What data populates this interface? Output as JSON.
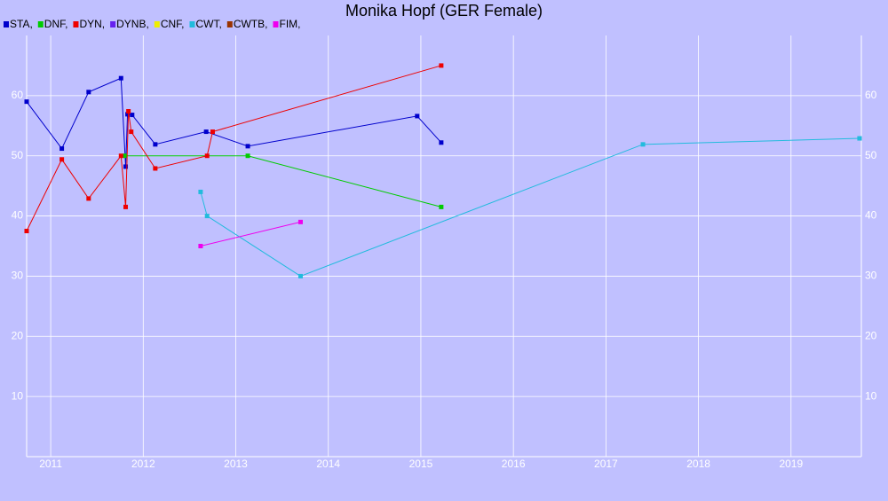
{
  "chart_data": {
    "type": "line",
    "title": "Monika Hopf (GER Female)",
    "series": [
      {
        "name": "STA,",
        "color": "#0000cc",
        "x": [
          2010.74,
          2011.12,
          2011.41,
          2011.76,
          2011.81,
          2011.83,
          2011.88,
          2012.13,
          2012.68,
          2013.13,
          2014.96,
          2015.22
        ],
        "values": [
          59,
          51.2,
          60.6,
          62.9,
          48.2,
          56.9,
          56.8,
          51.9,
          54,
          51.6,
          56.6,
          52.2
        ]
      },
      {
        "name": "DNF,",
        "color": "#00cc00",
        "x": [
          2011.8,
          2013.13,
          2015.22
        ],
        "values": [
          50,
          50,
          41.5
        ]
      },
      {
        "name": "DYN,",
        "color": "#ee0000",
        "x": [
          2010.74,
          2011.12,
          2011.41,
          2011.76,
          2011.81,
          2011.84,
          2011.87,
          2012.13,
          2012.69,
          2012.75,
          2015.22
        ],
        "values": [
          37.5,
          49.4,
          42.9,
          50,
          41.5,
          57.4,
          54,
          47.9,
          50,
          54,
          65
        ]
      },
      {
        "name": "DYNB,",
        "color": "#6622ee",
        "x": [],
        "values": []
      },
      {
        "name": "CNF,",
        "color": "#eeee00",
        "x": [],
        "values": []
      },
      {
        "name": "CWT,",
        "color": "#22bbdd",
        "x": [
          2012.62,
          2012.69,
          2013.7,
          2017.4,
          2019.74
        ],
        "values": [
          44,
          40,
          30,
          51.9,
          52.9
        ]
      },
      {
        "name": "CWTB,",
        "color": "#993300",
        "x": [],
        "values": []
      },
      {
        "name": "FIM,",
        "color": "#ee00ee",
        "x": [
          2012.62,
          2013.7
        ],
        "values": [
          35,
          39
        ]
      }
    ],
    "xlim": [
      2010.74,
      2019.76
    ],
    "xticks": [
      2011,
      2012,
      2013,
      2014,
      2015,
      2016,
      2017,
      2018,
      2019
    ],
    "ylim": [
      0,
      70
    ],
    "yticks": [
      10,
      20,
      30,
      40,
      50,
      60
    ],
    "grid": true
  }
}
